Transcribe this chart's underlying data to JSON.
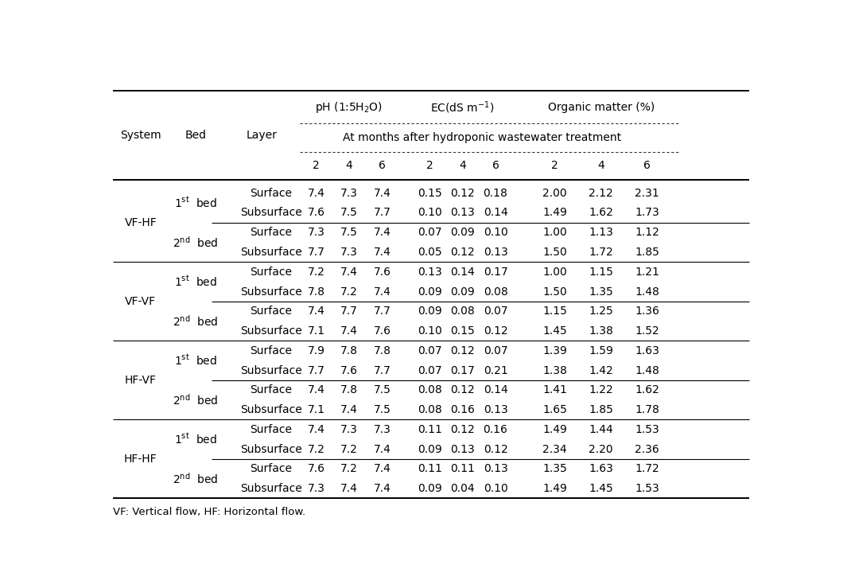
{
  "systems": [
    "VF-HF",
    "VF-VF",
    "HF-VF",
    "HF-HF"
  ],
  "data": [
    [
      "VF-HF",
      "1",
      "st",
      "Surface",
      "7.4",
      "7.3",
      "7.4",
      "0.15",
      "0.12",
      "0.18",
      "2.00",
      "2.12",
      "2.31"
    ],
    [
      "",
      "",
      "",
      "Subsurface",
      "7.6",
      "7.5",
      "7.7",
      "0.10",
      "0.13",
      "0.14",
      "1.49",
      "1.62",
      "1.73"
    ],
    [
      "",
      "2",
      "nd",
      "Surface",
      "7.3",
      "7.5",
      "7.4",
      "0.07",
      "0.09",
      "0.10",
      "1.00",
      "1.13",
      "1.12"
    ],
    [
      "",
      "",
      "",
      "Subsurface",
      "7.7",
      "7.3",
      "7.4",
      "0.05",
      "0.12",
      "0.13",
      "1.50",
      "1.72",
      "1.85"
    ],
    [
      "VF-VF",
      "1",
      "st",
      "Surface",
      "7.2",
      "7.4",
      "7.6",
      "0.13",
      "0.14",
      "0.17",
      "1.00",
      "1.15",
      "1.21"
    ],
    [
      "",
      "",
      "",
      "Subsurface",
      "7.8",
      "7.2",
      "7.4",
      "0.09",
      "0.09",
      "0.08",
      "1.50",
      "1.35",
      "1.48"
    ],
    [
      "",
      "2",
      "nd",
      "Surface",
      "7.4",
      "7.7",
      "7.7",
      "0.09",
      "0.08",
      "0.07",
      "1.15",
      "1.25",
      "1.36"
    ],
    [
      "",
      "",
      "",
      "Subsurface",
      "7.1",
      "7.4",
      "7.6",
      "0.10",
      "0.15",
      "0.12",
      "1.45",
      "1.38",
      "1.52"
    ],
    [
      "HF-VF",
      "1",
      "st",
      "Surface",
      "7.9",
      "7.8",
      "7.8",
      "0.07",
      "0.12",
      "0.07",
      "1.39",
      "1.59",
      "1.63"
    ],
    [
      "",
      "",
      "",
      "Subsurface",
      "7.7",
      "7.6",
      "7.7",
      "0.07",
      "0.17",
      "0.21",
      "1.38",
      "1.42",
      "1.48"
    ],
    [
      "",
      "2",
      "nd",
      "Surface",
      "7.4",
      "7.8",
      "7.5",
      "0.08",
      "0.12",
      "0.14",
      "1.41",
      "1.22",
      "1.62"
    ],
    [
      "",
      "",
      "",
      "Subsurface",
      "7.1",
      "7.4",
      "7.5",
      "0.08",
      "0.16",
      "0.13",
      "1.65",
      "1.85",
      "1.78"
    ],
    [
      "HF-HF",
      "1",
      "st",
      "Surface",
      "7.4",
      "7.3",
      "7.3",
      "0.11",
      "0.12",
      "0.16",
      "1.49",
      "1.44",
      "1.53"
    ],
    [
      "",
      "",
      "",
      "Subsurface",
      "7.2",
      "7.2",
      "7.4",
      "0.09",
      "0.13",
      "0.12",
      "2.34",
      "2.20",
      "2.36"
    ],
    [
      "",
      "2",
      "nd",
      "Surface",
      "7.6",
      "7.2",
      "7.4",
      "0.11",
      "0.11",
      "0.13",
      "1.35",
      "1.63",
      "1.72"
    ],
    [
      "",
      "",
      "",
      "Subsurface",
      "7.3",
      "7.4",
      "7.4",
      "0.09",
      "0.04",
      "0.10",
      "1.49",
      "1.45",
      "1.53"
    ]
  ],
  "footnote": "VF: Vertical flow, HF: Horizontal flow.",
  "bg": "#ffffff",
  "fg": "#000000"
}
